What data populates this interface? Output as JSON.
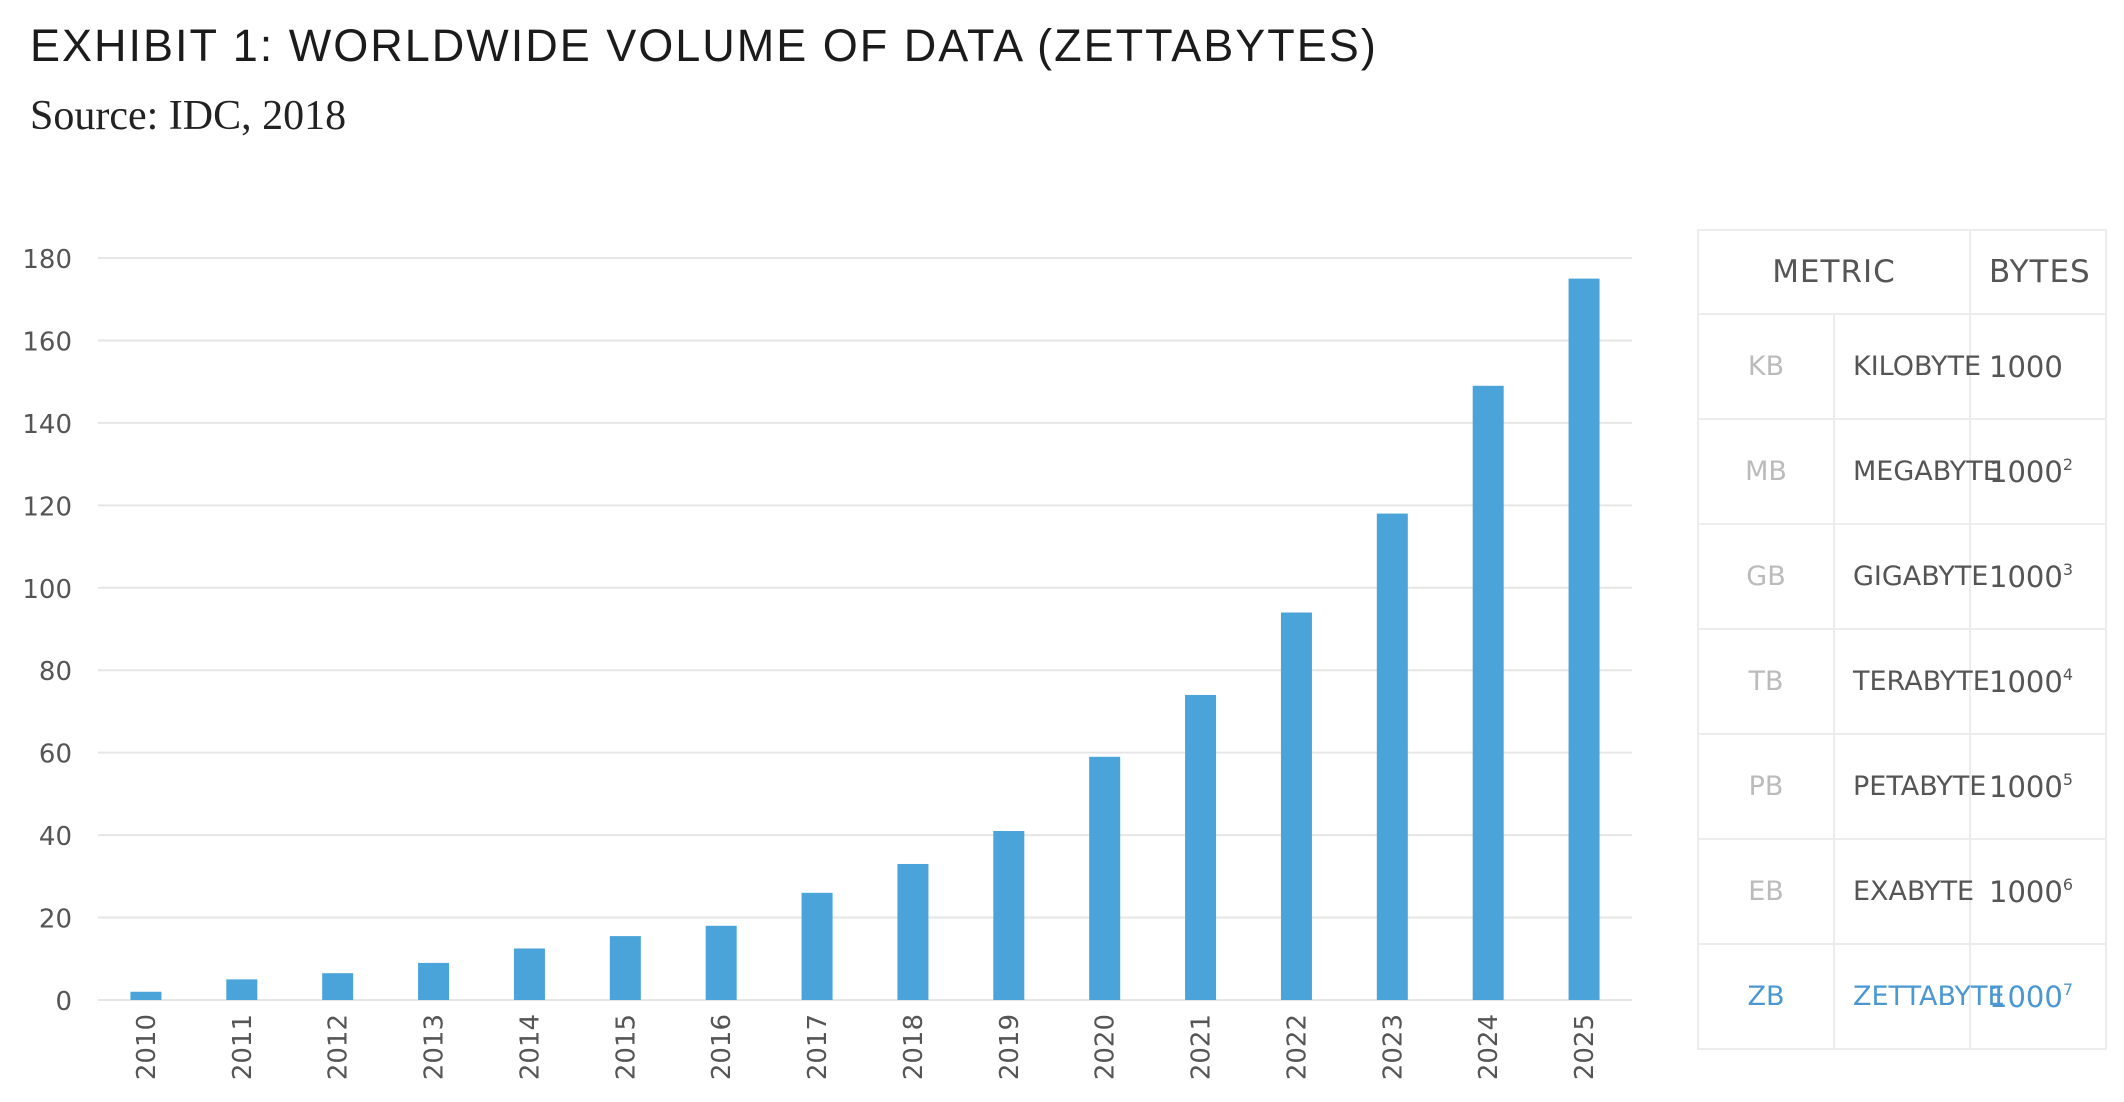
{
  "title": "EXHIBIT 1: WORLDWIDE VOLUME OF DATA (ZETTABYTES)",
  "subtitle": "Source: IDC, 2018",
  "colors": {
    "bar": "#4aa3d9",
    "highlight": "#4a97d1",
    "grid": "#e6e6e6",
    "tick_text": "#555555"
  },
  "chart_data": {
    "type": "bar",
    "title": "EXHIBIT 1: WORLDWIDE VOLUME OF DATA (ZETTABYTES)",
    "subtitle": "Source: IDC, 2018",
    "xlabel": "",
    "ylabel": "",
    "categories": [
      "2010",
      "2011",
      "2012",
      "2013",
      "2014",
      "2015",
      "2016",
      "2017",
      "2018",
      "2019",
      "2020",
      "2021",
      "2022",
      "2023",
      "2024",
      "2025"
    ],
    "values": [
      2,
      5,
      6.5,
      9,
      12.5,
      15.5,
      18,
      26,
      33,
      41,
      59,
      74,
      94,
      118,
      149,
      175
    ],
    "ylim": [
      0,
      180
    ],
    "yticks": [
      0,
      20,
      40,
      60,
      80,
      100,
      120,
      140,
      160,
      180
    ],
    "grid": true,
    "legend": "none"
  },
  "table": {
    "headers": {
      "metric": "METRIC",
      "bytes": "BYTES"
    },
    "rows": [
      {
        "abbr": "KB",
        "name": "KILOBYTE",
        "base": "1000",
        "exp": "",
        "highlight": false
      },
      {
        "abbr": "MB",
        "name": "MEGABYTE",
        "base": "1000",
        "exp": "2",
        "highlight": false
      },
      {
        "abbr": "GB",
        "name": "GIGABYTE",
        "base": "1000",
        "exp": "3",
        "highlight": false
      },
      {
        "abbr": "TB",
        "name": "TERABYTE",
        "base": "1000",
        "exp": "4",
        "highlight": false
      },
      {
        "abbr": "PB",
        "name": "PETABYTE",
        "base": "1000",
        "exp": "5",
        "highlight": false
      },
      {
        "abbr": "EB",
        "name": "EXABYTE",
        "base": "1000",
        "exp": "6",
        "highlight": false
      },
      {
        "abbr": "ZB",
        "name": "ZETTABYTE",
        "base": "1000",
        "exp": "7",
        "highlight": true
      }
    ]
  }
}
